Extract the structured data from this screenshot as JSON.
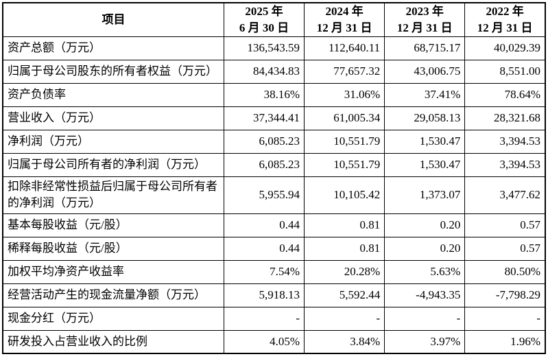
{
  "table": {
    "header": {
      "item_label": "项目",
      "periods": [
        {
          "line1": "2025 年",
          "line2": "6 月 30 日"
        },
        {
          "line1": "2024 年",
          "line2": "12 月 31 日"
        },
        {
          "line1": "2023 年",
          "line2": "12 月 31 日"
        },
        {
          "line1": "2022 年",
          "line2": "12 月 31 日"
        }
      ]
    },
    "rows": [
      {
        "label": "资产总额（万元）",
        "values": [
          "136,543.59",
          "112,640.11",
          "68,715.17",
          "40,029.39"
        ]
      },
      {
        "label": "归属于母公司股东的所有者权益（万元）",
        "values": [
          "84,434.83",
          "77,657.32",
          "43,006.75",
          "8,551.00"
        ]
      },
      {
        "label": "资产负债率",
        "values": [
          "38.16%",
          "31.06%",
          "37.41%",
          "78.64%"
        ]
      },
      {
        "label": "营业收入（万元）",
        "values": [
          "37,344.41",
          "61,005.34",
          "29,058.13",
          "28,321.68"
        ]
      },
      {
        "label": "净利润（万元）",
        "values": [
          "6,085.23",
          "10,551.79",
          "1,530.47",
          "3,394.53"
        ]
      },
      {
        "label": "归属于母公司所有者的净利润（万元）",
        "values": [
          "6,085.23",
          "10,551.79",
          "1,530.47",
          "3,394.53"
        ]
      },
      {
        "label": "扣除非经常性损益后归属于母公司所有者的净利润（万元）",
        "values": [
          "5,955.94",
          "10,105.42",
          "1,373.07",
          "3,477.62"
        ]
      },
      {
        "label": "基本每股收益（元/股）",
        "values": [
          "0.44",
          "0.81",
          "0.20",
          "0.57"
        ]
      },
      {
        "label": "稀释每股收益（元/股）",
        "values": [
          "0.44",
          "0.81",
          "0.20",
          "0.57"
        ]
      },
      {
        "label": "加权平均净资产收益率",
        "values": [
          "7.54%",
          "20.28%",
          "5.63%",
          "80.50%"
        ]
      },
      {
        "label": "经营活动产生的现金流量净额（万元）",
        "values": [
          "5,918.13",
          "5,592.44",
          "-4,943.35",
          "-7,798.29"
        ]
      },
      {
        "label": "现金分红（万元）",
        "values": [
          "-",
          "-",
          "-",
          "-"
        ]
      },
      {
        "label": "研发投入占营业收入的比例",
        "values": [
          "4.05%",
          "3.84%",
          "3.97%",
          "1.96%"
        ]
      }
    ]
  },
  "colors": {
    "border": "#000000",
    "text": "#000000",
    "background": "#ffffff"
  }
}
